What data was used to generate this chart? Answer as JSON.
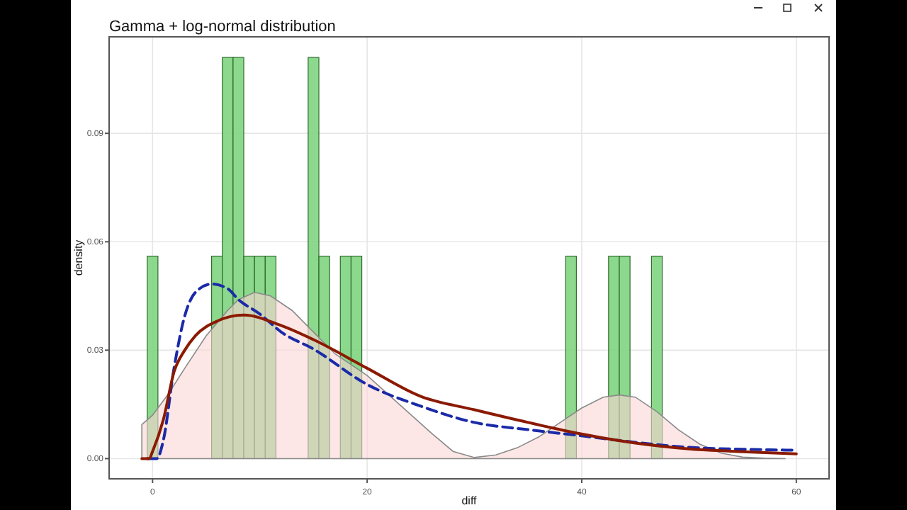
{
  "chart_data": {
    "type": "histogram",
    "title": "Gamma + log-normal distribution",
    "xlabel": "diff",
    "ylabel": "density",
    "bins": [
      -0.5,
      0.5,
      1.5,
      2.5,
      3.5,
      4.5,
      5.5,
      6.5,
      7.5,
      8.5,
      9.5,
      10.5,
      11.5,
      12.5,
      13.5,
      14.5,
      15.5,
      16.5,
      17.5,
      18.5,
      19.5,
      20.5,
      21.5,
      22.5,
      23.5,
      24.5,
      25.5,
      26.5,
      27.5,
      28.5,
      29.5,
      30.5,
      31.5,
      32.5,
      33.5,
      34.5,
      35.5,
      36.5,
      37.5,
      38.5,
      39.5,
      40.5,
      41.5,
      42.5,
      43.5,
      44.5,
      45.5,
      46.5,
      47.5
    ],
    "values": [
      0.056,
      0,
      0,
      0,
      0,
      0,
      0.056,
      0.111,
      0.111,
      0.056,
      0.056,
      0.056,
      0,
      0,
      0,
      0.111,
      0.056,
      0,
      0.056,
      0.056,
      0,
      0,
      0,
      0,
      0,
      0,
      0,
      0,
      0,
      0,
      0,
      0,
      0,
      0,
      0,
      0,
      0,
      0,
      0,
      0.056,
      0,
      0,
      0,
      0.056,
      0.056,
      0,
      0,
      0.056
    ],
    "color": "#7fd47f",
    "xlim": [
      -4.05,
      63.05
    ],
    "ylim": [
      -0.0056,
      0.1167
    ],
    "xticks": [
      0,
      20,
      40,
      60
    ],
    "yticks": [
      {
        "value": 0,
        "label": "0.00"
      },
      {
        "value": 0.03,
        "label": "0.03"
      },
      {
        "value": 0.06,
        "label": "0.06"
      },
      {
        "value": 0.09,
        "label": "0.09"
      }
    ],
    "grid": true,
    "series": [
      {
        "type": "area",
        "color": "#fbd5d5",
        "x": [
          -1,
          0,
          1.5,
          3,
          5,
          7,
          8,
          9.5,
          11,
          13,
          15,
          17,
          20,
          23,
          26,
          28,
          30,
          32,
          34,
          36,
          38,
          40,
          42,
          43.5,
          45,
          47,
          49,
          51,
          53,
          55,
          57,
          59
        ],
        "values": [
          0.0094,
          0.012,
          0.018,
          0.025,
          0.034,
          0.041,
          0.044,
          0.046,
          0.045,
          0.041,
          0.035,
          0.029,
          0.023,
          0.015,
          0.007,
          0.002,
          0.0003,
          0.001,
          0.003,
          0.006,
          0.01,
          0.014,
          0.017,
          0.0176,
          0.017,
          0.013,
          0.008,
          0.004,
          0.0015,
          0.0004,
          0.0001,
          0
        ]
      },
      {
        "type": "line",
        "color": "#1a2aa8",
        "line_style": "dashed",
        "x": [
          -0.5,
          0.4,
          1,
          2,
          3,
          4,
          5.5,
          7,
          8,
          10,
          12,
          15,
          20,
          25,
          30,
          35,
          40,
          45,
          50,
          55,
          60
        ],
        "values": [
          0,
          0,
          0.005,
          0.025,
          0.0395,
          0.046,
          0.0483,
          0.047,
          0.044,
          0.04,
          0.035,
          0.0303,
          0.0205,
          0.0145,
          0.01,
          0.008,
          0.0063,
          0.0045,
          0.0031,
          0.0026,
          0.0023
        ]
      },
      {
        "type": "line",
        "color": "#8b1a00",
        "line_style": "solid",
        "x": [
          -1,
          -0.3,
          0,
          1,
          2,
          3,
          4,
          6,
          8.5,
          12,
          15,
          20,
          25,
          30,
          35,
          40,
          45,
          50,
          55,
          60
        ],
        "values": [
          0,
          0,
          0.002,
          0.0107,
          0.024,
          0.03,
          0.034,
          0.038,
          0.0397,
          0.0368,
          0.0329,
          0.025,
          0.0172,
          0.0135,
          0.01,
          0.0068,
          0.0043,
          0.0027,
          0.0019,
          0.0013
        ]
      }
    ]
  }
}
